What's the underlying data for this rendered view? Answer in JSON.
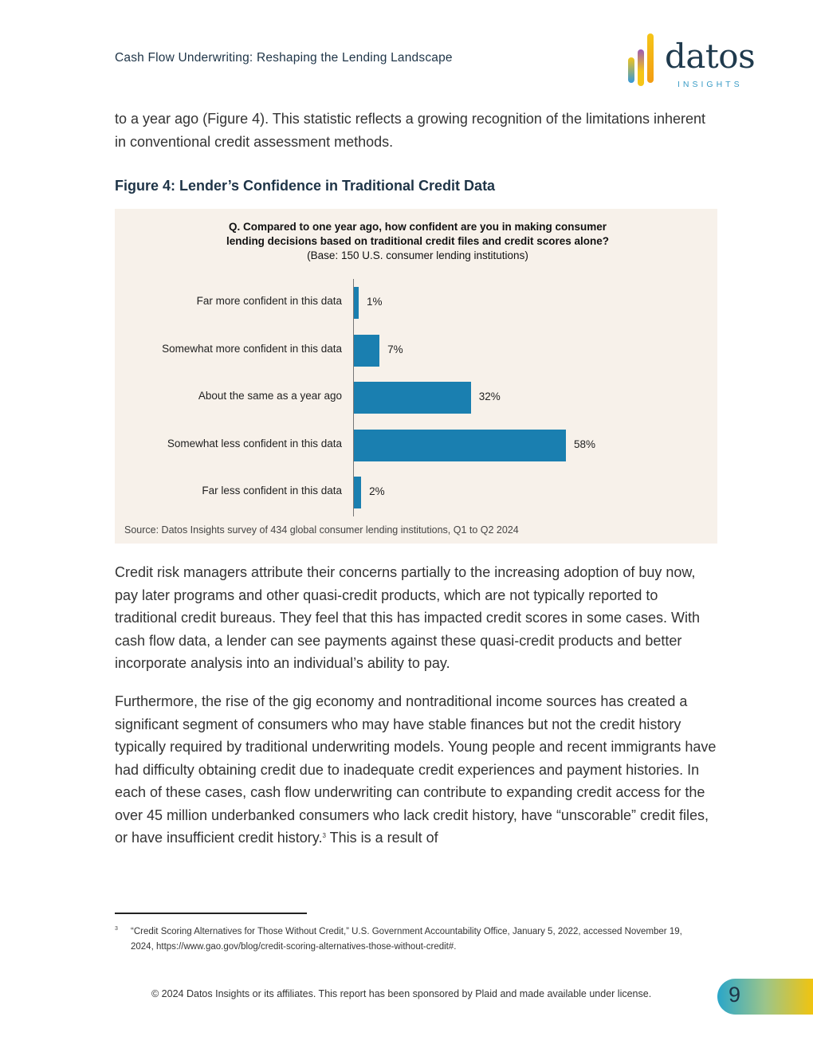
{
  "header": {
    "title": "Cash Flow Underwriting: Reshaping the Lending Landscape",
    "logo": {
      "word": "datos",
      "sub": "INSIGHTS",
      "colors": [
        "#f5c518",
        "#9b59b6",
        "#f39c12",
        "#3498db"
      ]
    }
  },
  "body": {
    "p1": "to a year ago (Figure 4). This statistic reflects a growing recognition of the limitations inherent in conventional credit assessment methods.",
    "figure_title": "Figure 4: Lender’s Confidence in Traditional Credit Data",
    "p2": "Credit risk managers attribute their concerns partially to the increasing adoption of buy now, pay later programs and other quasi-credit products, which are not typically reported to traditional credit bureaus. They feel that this has impacted credit scores in some cases. With cash flow data, a lender can see payments against these quasi-credit products and better incorporate analysis into an individual’s ability to pay.",
    "p3": "Furthermore, the rise of the gig economy and nontraditional income sources has created a significant segment of consumers who may have stable finances but not the credit history typically required by traditional underwriting models. Young people and recent immigrants have had difficulty obtaining credit due to inadequate credit experiences and payment histories. In each of these cases, cash flow underwriting can contribute to expanding credit access for the over 45 million underbanked consumers who lack credit history, have “unscorable” credit files, or have insufficient credit history.",
    "p3_sup": "3",
    "p3_tail": " This is a result of"
  },
  "chart_data": {
    "type": "bar",
    "orientation": "horizontal",
    "title_line1": "Q. Compared to one year ago, how confident are you in making consumer",
    "title_line2": "lending decisions based on traditional credit files and credit scores alone?",
    "subtitle": "(Base: 150 U.S. consumer lending institutions)",
    "categories": [
      "Far more confident in this data",
      "Somewhat more confident in this data",
      "About the same as a year ago",
      "Somewhat less confident in this data",
      "Far less confident in this data"
    ],
    "values": [
      1,
      7,
      32,
      58,
      2
    ],
    "labels": [
      "1%",
      "7%",
      "32%",
      "58%",
      "2%"
    ],
    "bar_color": "#1a7fb0",
    "background": "#f7f1ea",
    "source": "Source: Datos Insights survey of 434 global consumer lending institutions, Q1 to Q2 2024"
  },
  "footnote": {
    "number": "3",
    "text": "“Credit Scoring Alternatives for Those Without Credit,” U.S. Government Accountability Office, January 5, 2022, accessed November 19, 2024, https://www.gao.gov/blog/credit-scoring-alternatives-those-without-credit#."
  },
  "footer": {
    "copyright": "© 2024 Datos Insights or its affiliates. This report has been sponsored by Plaid and made available under license.",
    "page": "9"
  }
}
